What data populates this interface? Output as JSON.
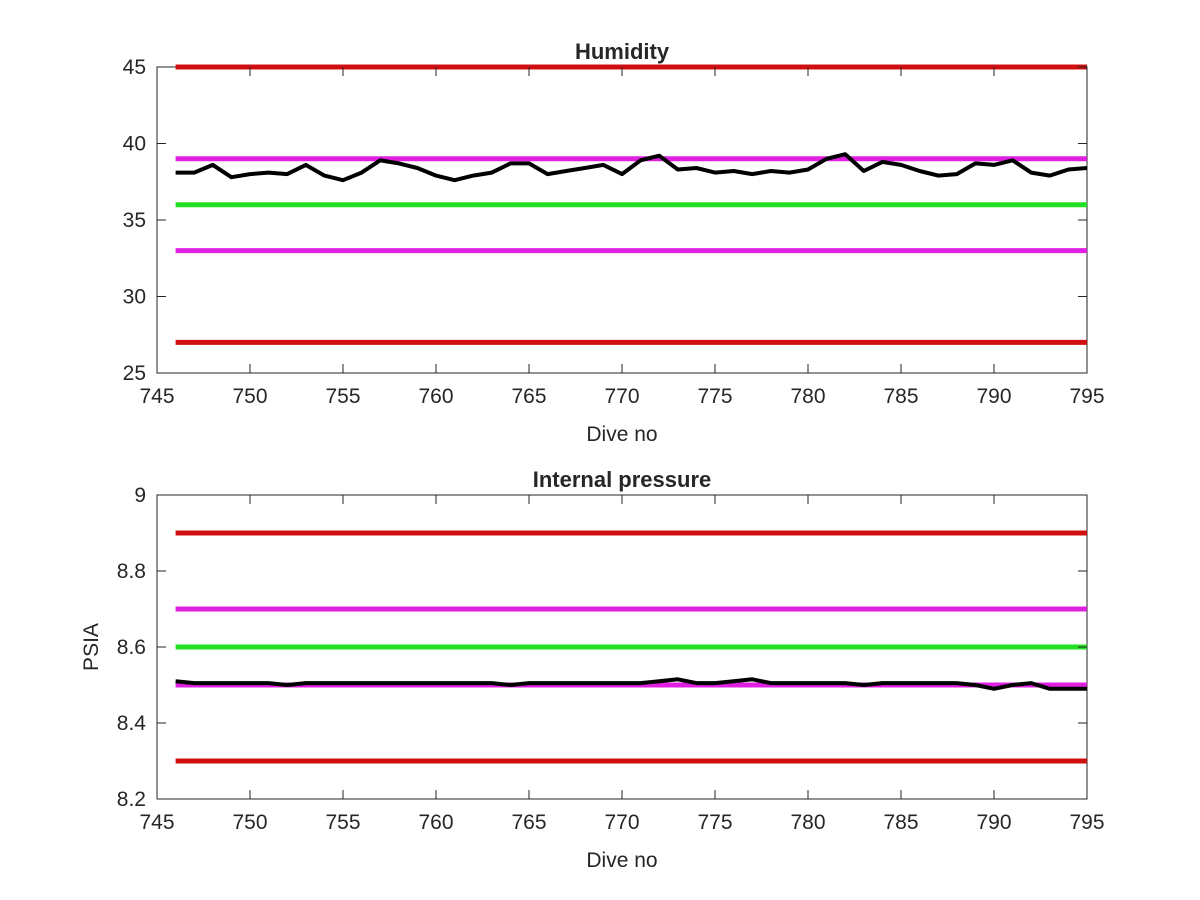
{
  "chart_data": [
    {
      "type": "line",
      "title": "Humidity",
      "xlabel": "Dive no",
      "ylabel": "",
      "xlim": [
        745,
        795
      ],
      "ylim": [
        25,
        45
      ],
      "xticks": [
        745,
        750,
        755,
        760,
        765,
        770,
        775,
        780,
        785,
        790,
        795
      ],
      "yticks": [
        25,
        30,
        35,
        40,
        45
      ],
      "grid": false,
      "reference_lines": [
        {
          "y": 45,
          "color": "#d01010"
        },
        {
          "y": 39,
          "color": "#e020e0"
        },
        {
          "y": 36,
          "color": "#22e022"
        },
        {
          "y": 33,
          "color": "#e020e0"
        },
        {
          "y": 27,
          "color": "#d01010"
        }
      ],
      "series": [
        {
          "color": "#000000",
          "x": [
            746,
            747,
            748,
            749,
            750,
            751,
            752,
            753,
            754,
            755,
            756,
            757,
            758,
            759,
            760,
            761,
            762,
            763,
            764,
            765,
            766,
            767,
            768,
            769,
            770,
            771,
            772,
            773,
            774,
            775,
            776,
            777,
            778,
            779,
            780,
            781,
            782,
            783,
            784,
            785,
            786,
            787,
            788,
            789,
            790,
            791,
            792,
            793,
            794,
            795
          ],
          "y": [
            38.1,
            38.1,
            38.6,
            37.8,
            38.0,
            38.1,
            38.0,
            38.6,
            37.9,
            37.6,
            38.1,
            38.9,
            38.7,
            38.4,
            37.9,
            37.6,
            37.9,
            38.1,
            38.7,
            38.7,
            38.0,
            38.2,
            38.4,
            38.6,
            38.0,
            38.9,
            39.2,
            38.3,
            38.4,
            38.1,
            38.2,
            38.0,
            38.2,
            38.1,
            38.3,
            39.0,
            39.3,
            38.2,
            38.8,
            38.6,
            38.2,
            37.9,
            38.0,
            38.7,
            38.6,
            38.9,
            38.1,
            37.9,
            38.3,
            38.4
          ]
        }
      ]
    },
    {
      "type": "line",
      "title": "Internal pressure",
      "xlabel": "Dive no",
      "ylabel": "PSIA",
      "xlim": [
        745,
        795
      ],
      "ylim": [
        8.2,
        9.0
      ],
      "xticks": [
        745,
        750,
        755,
        760,
        765,
        770,
        775,
        780,
        785,
        790,
        795
      ],
      "yticks": [
        8.2,
        8.4,
        8.6,
        8.8,
        9
      ],
      "grid": false,
      "reference_lines": [
        {
          "y": 8.9,
          "color": "#d01010"
        },
        {
          "y": 8.7,
          "color": "#e020e0"
        },
        {
          "y": 8.6,
          "color": "#22e022"
        },
        {
          "y": 8.5,
          "color": "#e020e0"
        },
        {
          "y": 8.3,
          "color": "#d01010"
        }
      ],
      "series": [
        {
          "color": "#000000",
          "x": [
            746,
            747,
            748,
            749,
            750,
            751,
            752,
            753,
            754,
            755,
            756,
            757,
            758,
            759,
            760,
            761,
            762,
            763,
            764,
            765,
            766,
            767,
            768,
            769,
            770,
            771,
            772,
            773,
            774,
            775,
            776,
            777,
            778,
            779,
            780,
            781,
            782,
            783,
            784,
            785,
            786,
            787,
            788,
            789,
            790,
            791,
            792,
            793,
            794,
            795
          ],
          "y": [
            8.51,
            8.505,
            8.505,
            8.505,
            8.505,
            8.505,
            8.5,
            8.505,
            8.505,
            8.505,
            8.505,
            8.505,
            8.505,
            8.505,
            8.505,
            8.505,
            8.505,
            8.505,
            8.5,
            8.505,
            8.505,
            8.505,
            8.505,
            8.505,
            8.505,
            8.505,
            8.51,
            8.515,
            8.505,
            8.505,
            8.51,
            8.515,
            8.505,
            8.505,
            8.505,
            8.505,
            8.505,
            8.5,
            8.505,
            8.505,
            8.505,
            8.505,
            8.505,
            8.5,
            8.49,
            8.5,
            8.505,
            8.49,
            8.49,
            8.49
          ]
        }
      ]
    }
  ]
}
